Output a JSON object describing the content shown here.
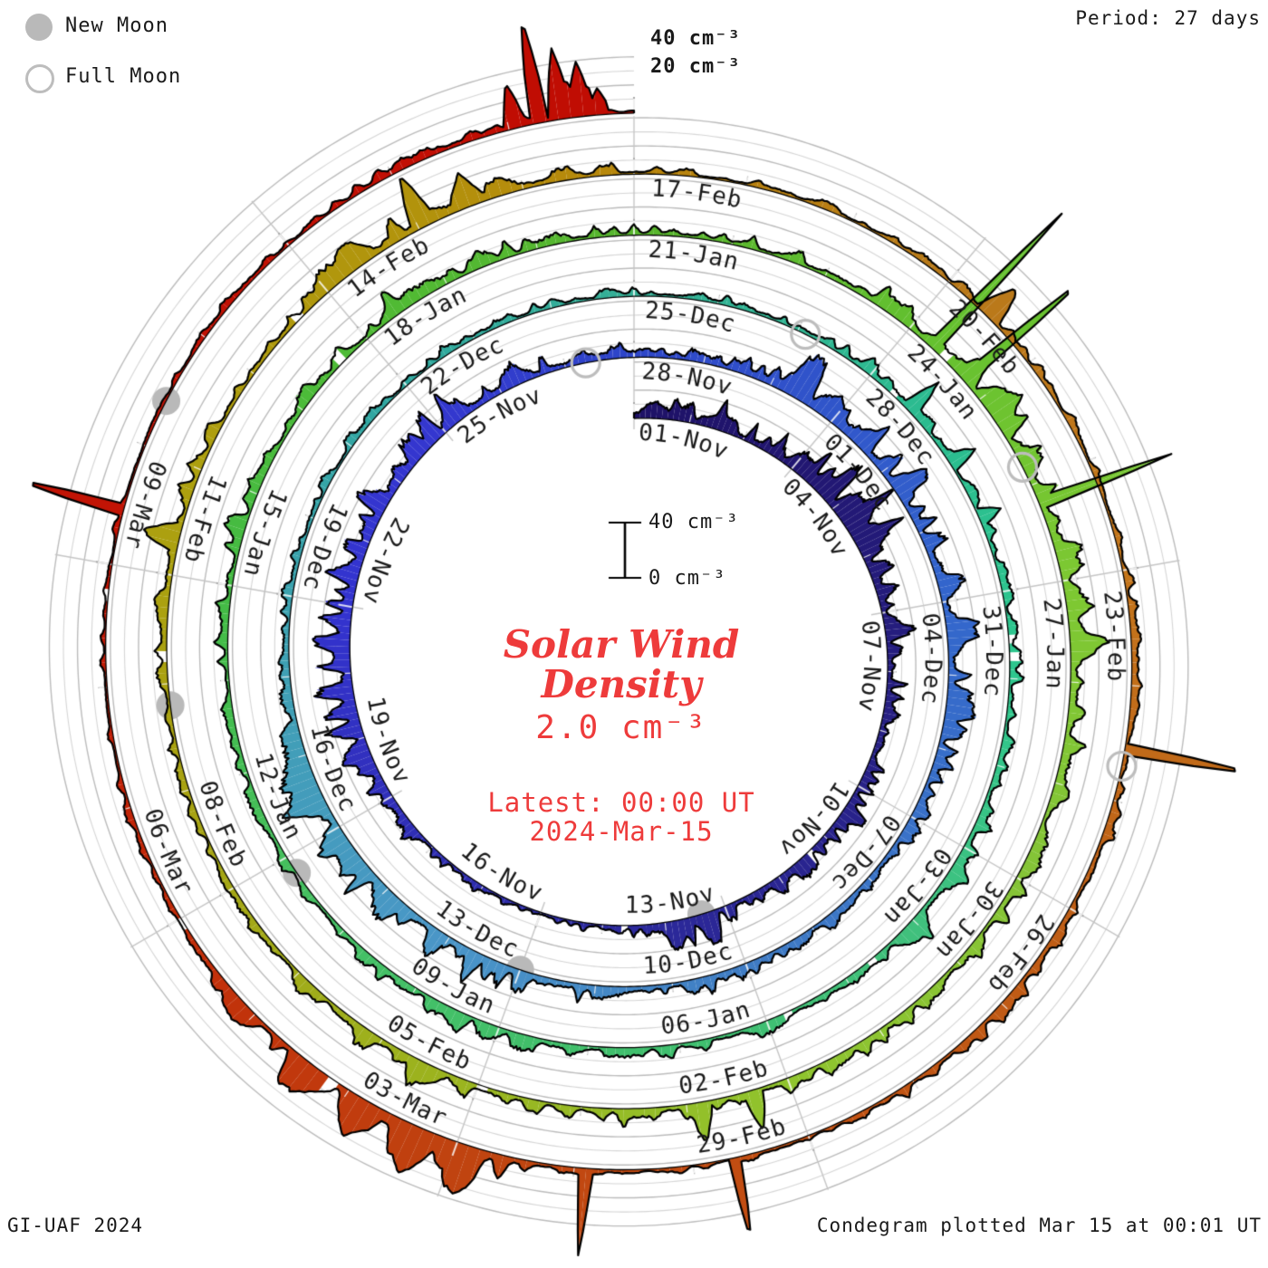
{
  "legend": {
    "new_moon": "New Moon",
    "full_moon": "Full Moon"
  },
  "header": {
    "period": "Period: 27 days"
  },
  "radial_axis": {
    "label_40": "40 cm⁻³",
    "label_20": "20 cm⁻³"
  },
  "scale_bar": {
    "top": "40 cm⁻³",
    "bottom": "0 cm⁻³"
  },
  "center": {
    "title_line1": "Solar Wind",
    "title_line2": "Density",
    "threshold": "2.0 cm⁻³",
    "latest_line1": "Latest: 00:00 UT",
    "latest_line2": "2024-Mar-15"
  },
  "footer": {
    "left": "GI-UAF 2024",
    "right": "Condegram plotted Mar 15 at 00:01 UT"
  },
  "chart_data": {
    "type": "spiral-polar-timeseries (condegram)",
    "title": "Solar Wind Density",
    "units": "cm⁻³",
    "threshold_value": 2.0,
    "period_days": 27,
    "total_days": 135,
    "start_label": "01-Nov",
    "end_label": "2024-Mar-15 00:00 UT",
    "label_step_days": 3,
    "date_labels": [
      "01-Nov",
      "04-Nov",
      "07-Nov",
      "10-Nov",
      "13-Nov",
      "16-Nov",
      "19-Nov",
      "22-Nov",
      "25-Nov",
      "28-Nov",
      "01-Dec",
      "04-Dec",
      "07-Dec",
      "10-Dec",
      "13-Dec",
      "16-Dec",
      "19-Dec",
      "22-Dec",
      "25-Dec",
      "28-Dec",
      "31-Dec",
      "03-Jan",
      "06-Jan",
      "09-Jan",
      "12-Jan",
      "15-Jan",
      "18-Jan",
      "21-Jan",
      "24-Jan",
      "27-Jan",
      "30-Jan",
      "02-Feb",
      "05-Feb",
      "08-Feb",
      "11-Feb",
      "14-Feb",
      "17-Feb",
      "20-Feb",
      "23-Feb",
      "26-Feb",
      "29-Feb",
      "03-Mar",
      "06-Mar",
      "09-Mar"
    ],
    "radial_gridline_step_units": 10,
    "radial_labeled_units": [
      20,
      40
    ],
    "new_moon_days": [
      12.4,
      42.0,
      71.8,
      100.8,
      130.4
    ],
    "full_moon_days": [
      26.3,
      56.1,
      85.8,
      115.7
    ],
    "moon_color": "#b9b9b9",
    "grid_color_light": "#d6d6d6",
    "grid_color_dark": "#bcbcbc",
    "outline_color": "#000000",
    "annotation_color": "#ee3b3b",
    "color_stops": [
      [
        0,
        "#1e1166"
      ],
      [
        8,
        "#272084"
      ],
      [
        14,
        "#2c2a9e"
      ],
      [
        21,
        "#3333cf"
      ],
      [
        24,
        "#3437cf"
      ],
      [
        27,
        "#2e46c9"
      ],
      [
        33,
        "#3366cc"
      ],
      [
        39,
        "#3f7cc4"
      ],
      [
        43,
        "#4a96c8"
      ],
      [
        47,
        "#3fa0b4"
      ],
      [
        51,
        "#2fa89f"
      ],
      [
        54,
        "#35b096"
      ],
      [
        58,
        "#2bbc8f"
      ],
      [
        61,
        "#2ec78e"
      ],
      [
        64,
        "#40c07d"
      ],
      [
        67,
        "#3fbf6e"
      ],
      [
        71,
        "#45c065"
      ],
      [
        75,
        "#44bb44"
      ],
      [
        78,
        "#4fbb35"
      ],
      [
        81,
        "#58b52e"
      ],
      [
        84,
        "#63c02f"
      ],
      [
        87,
        "#7dc832"
      ],
      [
        90,
        "#85c437"
      ],
      [
        93,
        "#90c42e"
      ],
      [
        96,
        "#9ab520"
      ],
      [
        100,
        "#a8a212"
      ],
      [
        103,
        "#ada00f"
      ],
      [
        106,
        "#b2930c"
      ],
      [
        108,
        "#b8860b"
      ],
      [
        111,
        "#b8791a"
      ],
      [
        114,
        "#c4761c"
      ],
      [
        117,
        "#bf5f16"
      ],
      [
        120,
        "#c25012"
      ],
      [
        123,
        "#c04310"
      ],
      [
        126,
        "#c22c09"
      ],
      [
        129,
        "#c21505"
      ],
      [
        135,
        "#c00c03"
      ]
    ],
    "daily_mean_density": [
      8,
      10,
      9,
      14,
      22,
      16,
      11,
      10,
      9,
      8,
      9,
      8,
      11,
      10,
      5,
      4,
      4,
      5,
      13,
      15,
      17,
      16,
      15,
      13,
      14,
      12,
      8,
      7,
      8,
      13,
      16,
      13,
      11,
      13,
      12,
      10,
      8,
      7,
      7,
      8,
      8,
      9,
      11,
      13,
      15,
      16,
      13,
      7,
      5,
      5,
      5,
      4,
      5,
      5,
      4,
      5,
      6,
      7,
      6,
      6,
      5,
      6,
      7,
      9,
      10,
      8,
      7,
      6,
      6,
      8,
      8,
      7,
      5,
      5,
      6,
      7,
      7,
      6,
      7,
      8,
      7,
      5,
      5,
      7,
      12,
      13,
      11,
      12,
      11,
      9,
      8,
      7,
      7,
      8,
      8,
      7,
      9,
      9,
      7,
      4,
      4,
      5,
      7,
      7,
      6,
      10,
      12,
      9,
      4,
      3,
      4,
      5,
      5,
      4,
      5,
      5,
      5,
      7,
      8,
      6,
      3,
      3,
      5,
      14,
      12,
      8,
      5,
      5,
      4,
      3,
      3,
      4,
      4,
      5,
      7,
      2
    ],
    "spikes": [
      [
        0.35,
        0.25,
        6
      ],
      [
        1.5,
        0.3,
        8
      ],
      [
        3.6,
        0.3,
        10
      ],
      [
        4.35,
        0.35,
        16
      ],
      [
        4.8,
        0.25,
        12
      ],
      [
        6.3,
        0.2,
        8
      ],
      [
        9.5,
        0.25,
        8
      ],
      [
        12.35,
        0.2,
        10
      ],
      [
        12.8,
        0.25,
        13
      ],
      [
        18.6,
        0.2,
        8
      ],
      [
        20.4,
        0.25,
        9
      ],
      [
        21.5,
        0.2,
        8
      ],
      [
        24.2,
        0.2,
        9
      ],
      [
        29.4,
        0.2,
        16
      ],
      [
        29.9,
        0.25,
        14
      ],
      [
        30.5,
        0.2,
        12
      ],
      [
        31.3,
        0.15,
        10
      ],
      [
        33.5,
        0.25,
        10
      ],
      [
        34.4,
        0.2,
        9
      ],
      [
        42.6,
        0.12,
        12
      ],
      [
        44.6,
        0.3,
        10
      ],
      [
        45.5,
        0.25,
        12
      ],
      [
        46.3,
        0.15,
        10
      ],
      [
        57.6,
        0.09,
        22
      ],
      [
        58.4,
        0.09,
        19
      ],
      [
        59.1,
        0.09,
        15
      ],
      [
        63.3,
        0.2,
        9
      ],
      [
        64.1,
        0.25,
        11
      ],
      [
        69.5,
        0.2,
        8
      ],
      [
        75.6,
        0.15,
        9
      ],
      [
        78.4,
        0.2,
        8
      ],
      [
        84.3,
        0.05,
        118
      ],
      [
        84.75,
        0.05,
        92
      ],
      [
        85.2,
        0.3,
        12
      ],
      [
        86.2,
        0.05,
        96
      ],
      [
        87.6,
        0.25,
        10
      ],
      [
        93.35,
        0.09,
        26
      ],
      [
        93.85,
        0.09,
        22
      ],
      [
        96.5,
        0.2,
        9
      ],
      [
        102.35,
        0.12,
        20
      ],
      [
        105.3,
        0.2,
        14
      ],
      [
        106.05,
        0.1,
        32
      ],
      [
        106.5,
        0.15,
        18
      ],
      [
        111.45,
        0.12,
        24
      ],
      [
        115.55,
        0.05,
        90
      ],
      [
        120.65,
        0.05,
        58
      ],
      [
        121.9,
        0.05,
        55
      ],
      [
        122.9,
        0.15,
        22
      ],
      [
        123.35,
        0.2,
        30
      ],
      [
        123.85,
        0.2,
        26
      ],
      [
        124.35,
        0.25,
        18
      ],
      [
        125.1,
        0.2,
        12
      ],
      [
        129.45,
        0.05,
        75
      ],
      [
        134.05,
        0.08,
        28
      ],
      [
        134.25,
        0.07,
        72
      ],
      [
        134.42,
        0.09,
        48
      ],
      [
        134.58,
        0.1,
        34
      ],
      [
        134.72,
        0.08,
        18
      ]
    ]
  }
}
